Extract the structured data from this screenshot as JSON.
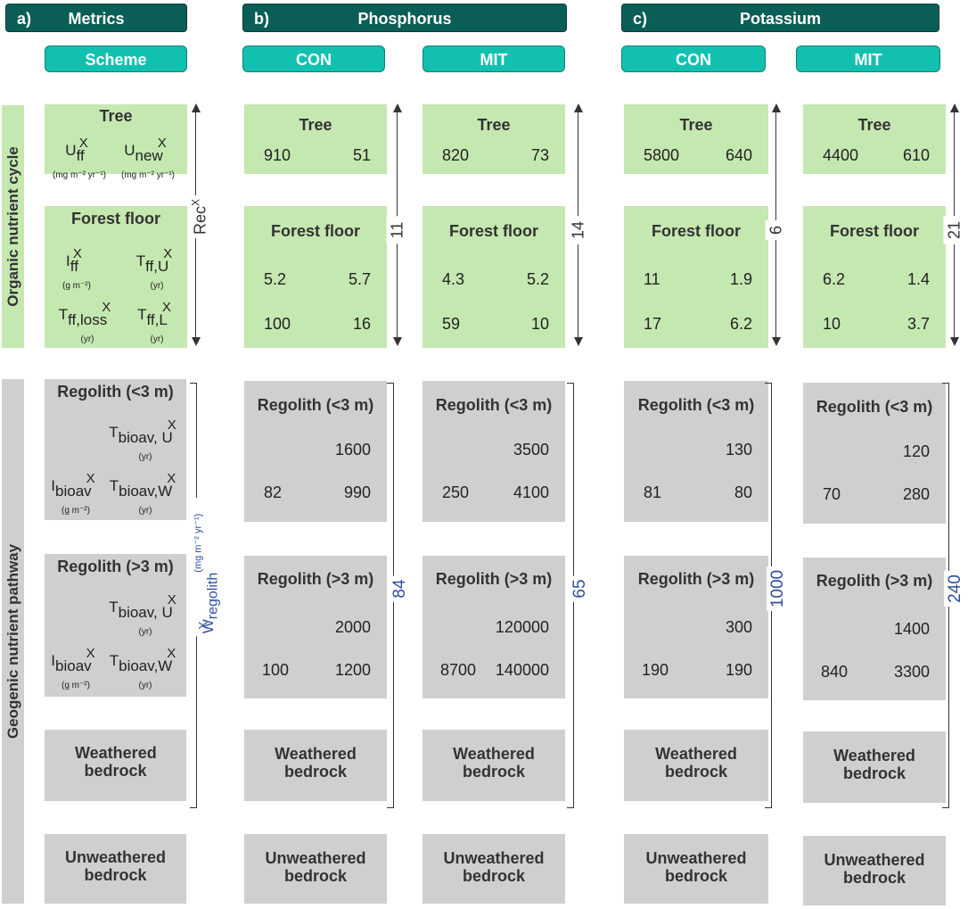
{
  "headers": {
    "metrics": {
      "tag": "a)",
      "title": "Metrics"
    },
    "phosphorus": {
      "tag": "b)",
      "title": "Phosphorus"
    },
    "potassium": {
      "tag": "c)",
      "title": "Potassium"
    }
  },
  "subheaders": {
    "scheme": "Scheme",
    "con": "CON",
    "mit": "MIT"
  },
  "side_labels": {
    "organic": "Organic nutrient cycle",
    "geogenic": "Geogenic nutrient pathway"
  },
  "scheme": {
    "tree": "Tree",
    "forest_floor": "Forest floor",
    "regolith_shallow": "Regolith (<3 m)",
    "regolith_deep": "Regolith (>3 m)",
    "weathered": "Weathered bedrock",
    "unweathered": "Unweathered bedrock",
    "rec_label": "Rec",
    "rec_sup": "X",
    "w_label": "W",
    "w_sub": "regolith",
    "w_sup": "X",
    "w_unit": "(mg m⁻² yr⁻¹)",
    "sup_x": "X",
    "sym_U": "U",
    "sym_I": "I",
    "sym_T": "T",
    "sub_ff": "ff",
    "sub_new": "new",
    "sub_ffU": "ff,U",
    "sub_ffloss": "ff,loss",
    "sub_ffL": "ff,L",
    "sub_bioav": "bioav",
    "sub_bioavU": "bioav, U",
    "sub_bioavW": "bioav,W",
    "unit_flux": "(mg m⁻² yr⁻¹)",
    "unit_stock": "(g m⁻²)",
    "unit_time": "(yr)"
  },
  "columns": [
    {
      "tree": [
        "910",
        "51"
      ],
      "ff": [
        "5.2",
        "5.7",
        "100",
        "16"
      ],
      "rec": "11",
      "r1": [
        "1600",
        "82",
        "990"
      ],
      "r2": [
        "2000",
        "100",
        "1200"
      ],
      "w": "84"
    },
    {
      "tree": [
        "820",
        "73"
      ],
      "ff": [
        "4.3",
        "5.2",
        "59",
        "10"
      ],
      "rec": "14",
      "r1": [
        "3500",
        "250",
        "4100"
      ],
      "r2": [
        "120000",
        "8700",
        "140000"
      ],
      "w": "65"
    },
    {
      "tree": [
        "5800",
        "640"
      ],
      "ff": [
        "11",
        "1.9",
        "17",
        "6.2"
      ],
      "rec": "6",
      "r1": [
        "130",
        "81",
        "80"
      ],
      "r2": [
        "300",
        "190",
        "190"
      ],
      "w": "1000"
    },
    {
      "tree": [
        "4400",
        "610"
      ],
      "ff": [
        "6.2",
        "1.4",
        "10",
        "3.7"
      ],
      "rec": "21",
      "r1": [
        "120",
        "70",
        "280"
      ],
      "r2": [
        "1400",
        "840",
        "3300"
      ],
      "w": "240"
    }
  ]
}
